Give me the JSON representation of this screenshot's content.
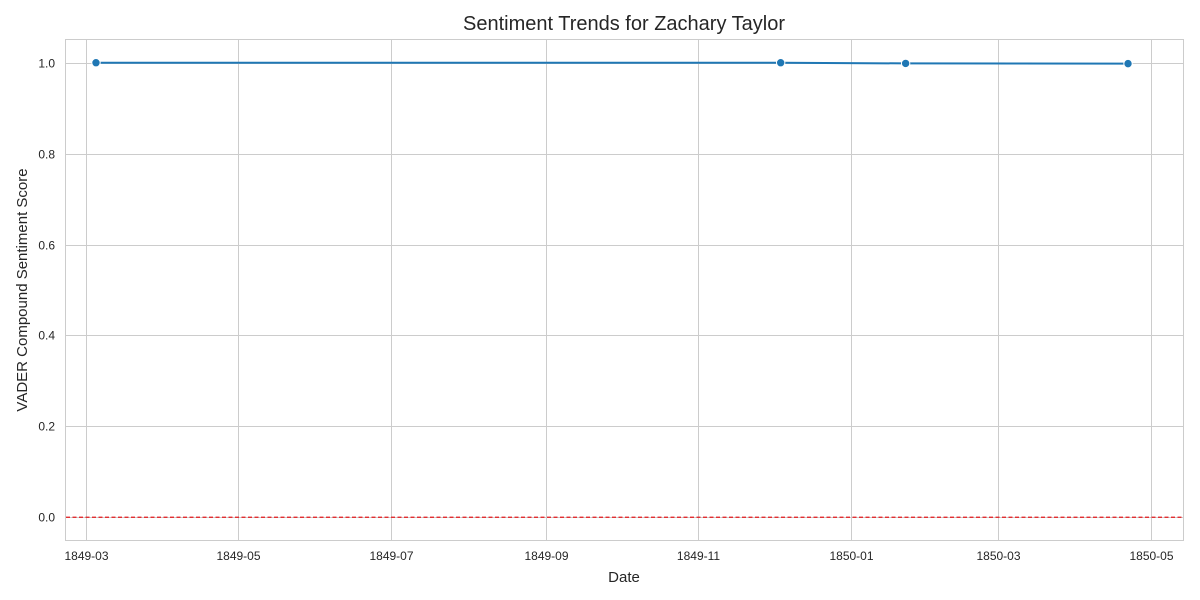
{
  "chart_data": {
    "type": "line",
    "title": "Sentiment Trends for Zachary Taylor",
    "xlabel": "Date",
    "ylabel": "VADER Compound Sentiment Score",
    "x_ticks": [
      "1849-03",
      "1849-05",
      "1849-07",
      "1849-09",
      "1849-11",
      "1850-01",
      "1850-03",
      "1850-05"
    ],
    "y_ticks": [
      "0.0",
      "0.2",
      "0.4",
      "0.6",
      "0.8",
      "1.0"
    ],
    "ylim": [
      -0.05,
      1.05
    ],
    "xlim": [
      "1849-02-21",
      "1850-05-14"
    ],
    "series": [
      {
        "x": [
          "1849-03-05",
          "1849-12-04",
          "1850-01-23",
          "1850-04-22"
        ],
        "y": [
          1.0,
          1.0,
          0.9985,
          0.998
        ],
        "color": "#1f77b4",
        "marker": "circle"
      }
    ],
    "reference_line": {
      "y": 0.0,
      "color": "#e41a1c",
      "style": "dashed"
    },
    "grid": true,
    "plot_background": "#ffffff",
    "grid_color": "#cccccc"
  }
}
